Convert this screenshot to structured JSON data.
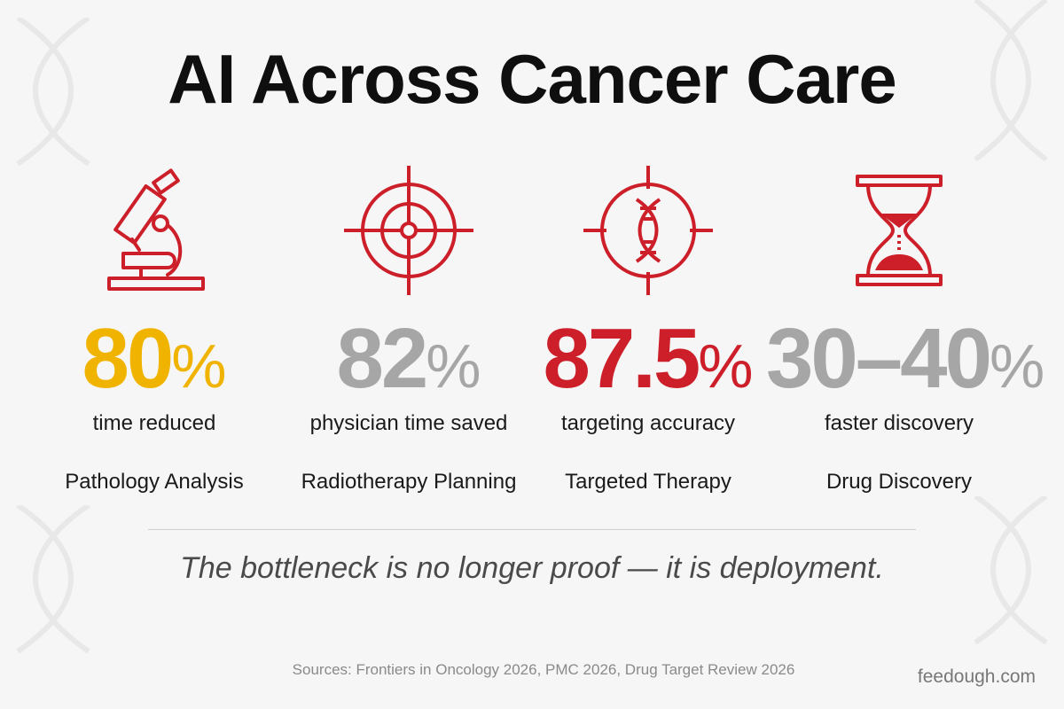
{
  "title": "AI Across Cancer Care",
  "colors": {
    "accent_red": "#cc1f2a",
    "gold": "#f0b400",
    "gray": "#a6a6a6"
  },
  "metrics": [
    {
      "icon": "microscope-icon",
      "value": "80",
      "unit": "%",
      "color": "#f0b400",
      "label": "time reduced",
      "category": "Pathology Analysis"
    },
    {
      "icon": "crosshair-target-icon",
      "value": "82",
      "unit": "%",
      "color": "#a6a6a6",
      "label": "physician time saved",
      "category": "Radiotherapy Planning"
    },
    {
      "icon": "dna-target-icon",
      "value": "87.5",
      "unit": "%",
      "color": "#cc1f2a",
      "label": "targeting accuracy",
      "category": "Targeted Therapy"
    },
    {
      "icon": "hourglass-icon",
      "value": "30–40",
      "unit": "%",
      "color": "#a6a6a6",
      "label": "faster discovery",
      "category": "Drug Discovery"
    }
  ],
  "tagline": "The bottleneck is no longer proof — it is deployment.",
  "sources": "Sources: Frontiers in Oncology 2026, PMC 2026, Drug Target Review 2026",
  "brand": "feedough.com"
}
